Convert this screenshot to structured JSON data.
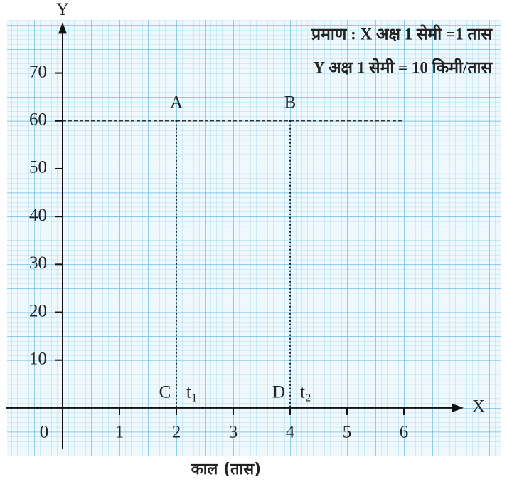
{
  "chart_data": {
    "type": "line",
    "notes": [
      "प्रमाण : X अक्ष 1 सेमी =1 तास",
      "Y अक्ष 1 सेमी = 10 किमी/तास"
    ],
    "x_axis_name": "X",
    "y_axis_name": "Y",
    "xlabel": "काल (तास)",
    "xlim": [
      -1,
      7
    ],
    "ylim": [
      -8.5,
      80
    ],
    "xticks": [
      0,
      1,
      2,
      3,
      4,
      5,
      6
    ],
    "yticks": [
      10,
      20,
      30,
      40,
      50,
      60,
      70
    ],
    "series": [
      {
        "x": [
          0,
          6
        ],
        "values": [
          60,
          60
        ],
        "color": "#333333",
        "dashed": true
      }
    ],
    "points": [
      {
        "label": "A",
        "x": 2,
        "y": 60
      },
      {
        "label": "B",
        "x": 4,
        "y": 60
      },
      {
        "label": "C",
        "x": 2,
        "y": 0
      },
      {
        "label": "D",
        "x": 4,
        "y": 0
      }
    ],
    "drop_lines": [
      {
        "x": 2,
        "from": 60,
        "to": 0,
        "label": "t₁"
      },
      {
        "x": 4,
        "from": 60,
        "to": 0,
        "label": "t₂"
      }
    ],
    "grid": true
  }
}
